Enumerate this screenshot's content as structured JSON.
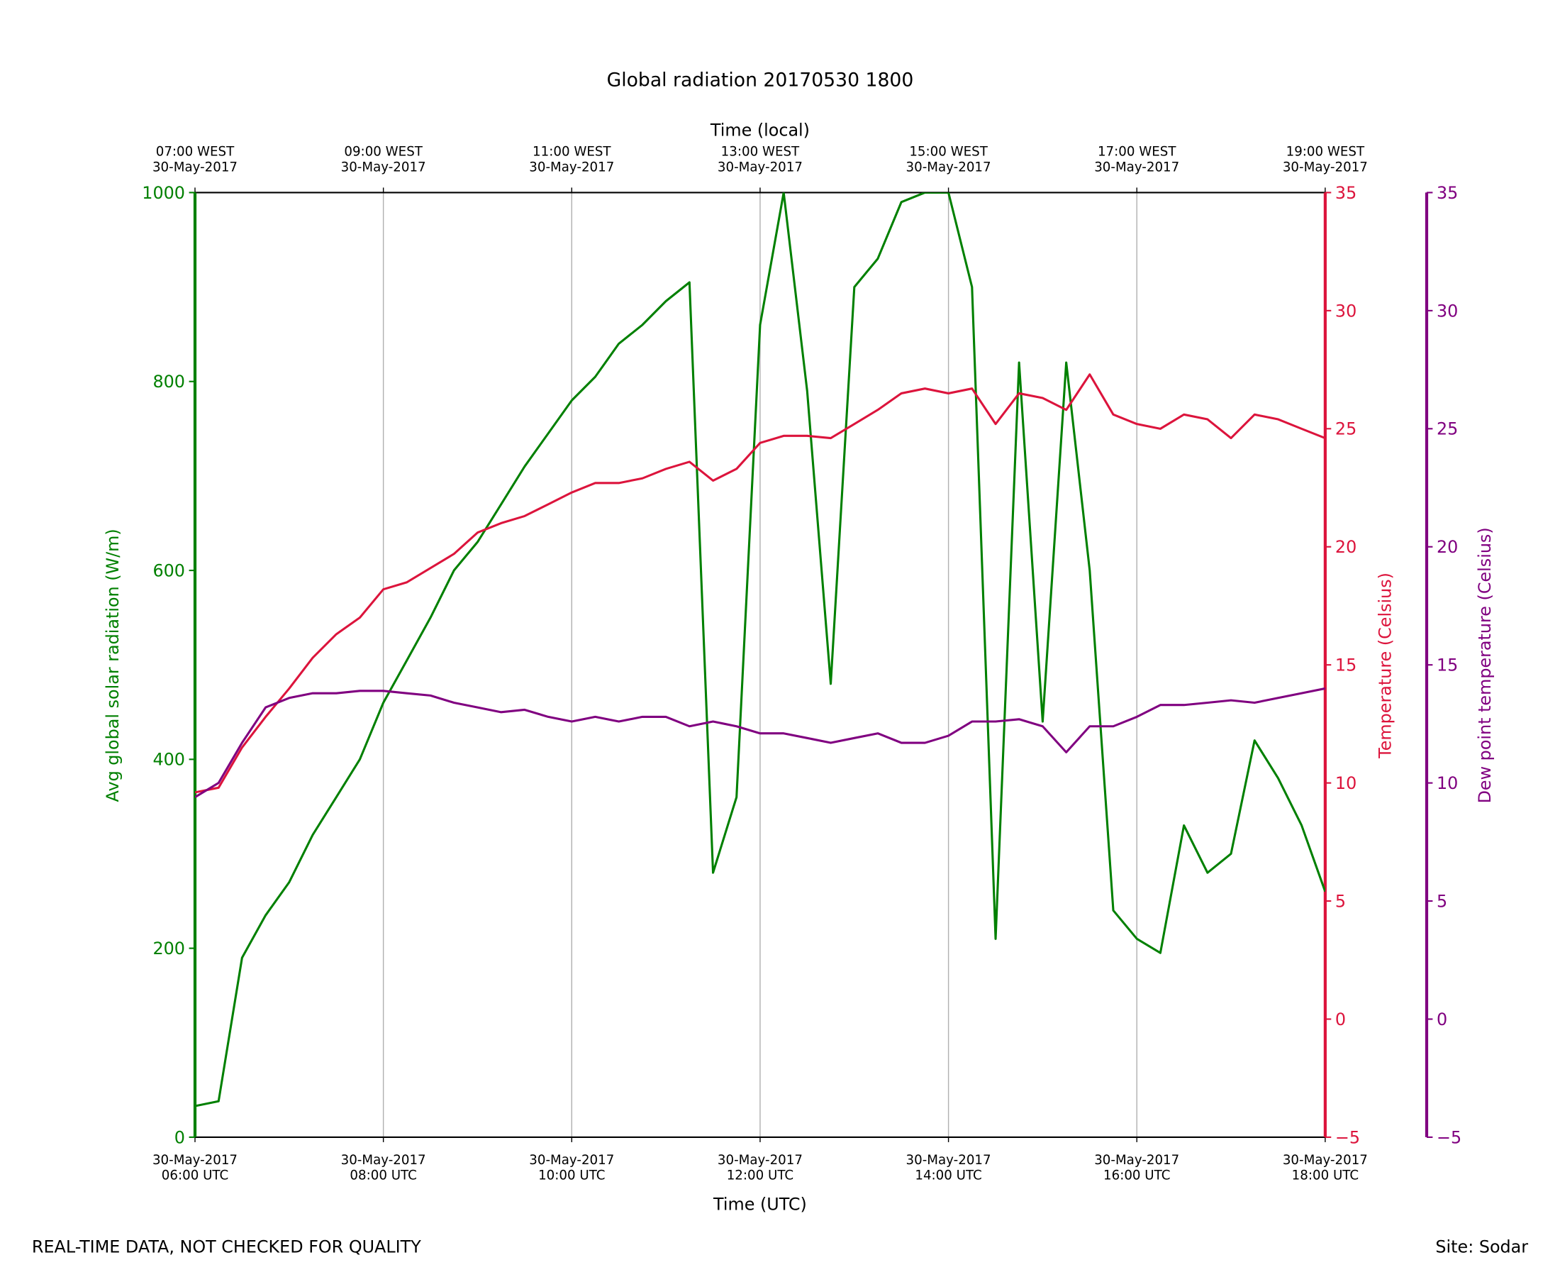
{
  "chart_data": {
    "type": "line",
    "title": "Global radiation 20170530 1800",
    "xlabel": "Time (UTC)",
    "x2label": "Time (local)",
    "ylabel": "Avg global solar radiation (W/m)",
    "y2label": "Temperature (Celsius)",
    "y3label": "Dew point temperature (Celsius)",
    "notes": [
      "REAL-TIME DATA, NOT CHECKED FOR QUALITY",
      "Site: Sodar"
    ],
    "grid": true,
    "xlim": [
      6,
      18
    ],
    "xticks": [
      {
        "value": 6,
        "label": "30-May-2017\n06:00 UTC"
      },
      {
        "value": 8,
        "label": "30-May-2017\n08:00 UTC"
      },
      {
        "value": 10,
        "label": "30-May-2017\n10:00 UTC"
      },
      {
        "value": 12,
        "label": "30-May-2017\n12:00 UTC"
      },
      {
        "value": 14,
        "label": "30-May-2017\n14:00 UTC"
      },
      {
        "value": 16,
        "label": "30-May-2017\n16:00 UTC"
      },
      {
        "value": 18,
        "label": "30-May-2017\n18:00 UTC"
      }
    ],
    "x2ticks": [
      {
        "value": 6,
        "label": "07:00 WEST\n30-May-2017"
      },
      {
        "value": 8,
        "label": "09:00 WEST\n30-May-2017"
      },
      {
        "value": 10,
        "label": "11:00 WEST\n30-May-2017"
      },
      {
        "value": 12,
        "label": "13:00 WEST\n30-May-2017"
      },
      {
        "value": 14,
        "label": "15:00 WEST\n30-May-2017"
      },
      {
        "value": 16,
        "label": "17:00 WEST\n30-May-2017"
      },
      {
        "value": 18,
        "label": "19:00 WEST\n30-May-2017"
      }
    ],
    "ylim": [
      0,
      1000
    ],
    "yticks": [
      0,
      200,
      400,
      600,
      800,
      1000
    ],
    "y2lim": [
      -5,
      35
    ],
    "y2ticks": [
      {
        "value": -5,
        "label": "−5"
      },
      0,
      5,
      10,
      15,
      20,
      25,
      30,
      35
    ],
    "y3lim": [
      -5,
      35
    ],
    "y3ticks": [
      {
        "value": -5,
        "label": "−5"
      },
      0,
      5,
      10,
      15,
      20,
      25,
      30,
      35
    ],
    "x": [
      6,
      6.25,
      6.5,
      6.75,
      7,
      7.25,
      7.5,
      7.75,
      8,
      8.25,
      8.5,
      8.75,
      9,
      9.25,
      9.5,
      9.75,
      10,
      10.25,
      10.5,
      10.75,
      11,
      11.25,
      11.5,
      11.75,
      12,
      12.25,
      12.5,
      12.75,
      13,
      13.25,
      13.5,
      13.75,
      14,
      14.25,
      14.5,
      14.75,
      15,
      15.25,
      15.5,
      15.75,
      16,
      16.25,
      16.5,
      16.75,
      17,
      17.25,
      17.5,
      17.75,
      18
    ],
    "series": [
      {
        "name": "Avg global solar radiation",
        "color": "#008000",
        "axis": "y",
        "values": [
          33,
          38,
          190,
          235,
          270,
          320,
          360,
          400,
          460,
          505,
          550,
          600,
          630,
          670,
          710,
          745,
          780,
          805,
          840,
          860,
          885,
          905,
          280,
          360,
          860,
          1000,
          790,
          480,
          900,
          930,
          990,
          1000,
          1000,
          900,
          210,
          820,
          440,
          820,
          600,
          240,
          210,
          195,
          330,
          280,
          300,
          420,
          380,
          330,
          260
        ]
      },
      {
        "name": "Temperature",
        "color": "#dc143c",
        "axis": "y2",
        "values": [
          9.6,
          9.8,
          11.5,
          12.8,
          14.0,
          15.3,
          16.3,
          17.0,
          18.2,
          18.5,
          19.1,
          19.7,
          20.6,
          21.0,
          21.3,
          21.8,
          22.3,
          22.7,
          22.7,
          22.9,
          23.3,
          23.6,
          22.8,
          23.3,
          24.4,
          24.7,
          24.7,
          24.6,
          25.2,
          25.8,
          26.5,
          26.7,
          26.5,
          26.7,
          25.2,
          26.5,
          26.3,
          25.8,
          27.3,
          25.6,
          25.2,
          25.0,
          25.6,
          25.4,
          24.6,
          25.6,
          25.4,
          25.0,
          24.6
        ]
      },
      {
        "name": "Dew point temperature",
        "color": "#800080",
        "axis": "y3",
        "values": [
          9.4,
          10.0,
          11.7,
          13.2,
          13.6,
          13.8,
          13.8,
          13.9,
          13.9,
          13.8,
          13.7,
          13.4,
          13.2,
          13.0,
          13.1,
          12.8,
          12.6,
          12.8,
          12.6,
          12.8,
          12.8,
          12.4,
          12.6,
          12.4,
          12.1,
          12.1,
          11.9,
          11.7,
          11.9,
          12.1,
          11.7,
          11.7,
          12.0,
          12.6,
          12.6,
          12.7,
          12.4,
          11.3,
          12.4,
          12.4,
          12.8,
          13.3,
          13.3,
          13.4,
          13.5,
          13.4,
          13.6,
          13.8,
          14.0
        ]
      }
    ]
  }
}
